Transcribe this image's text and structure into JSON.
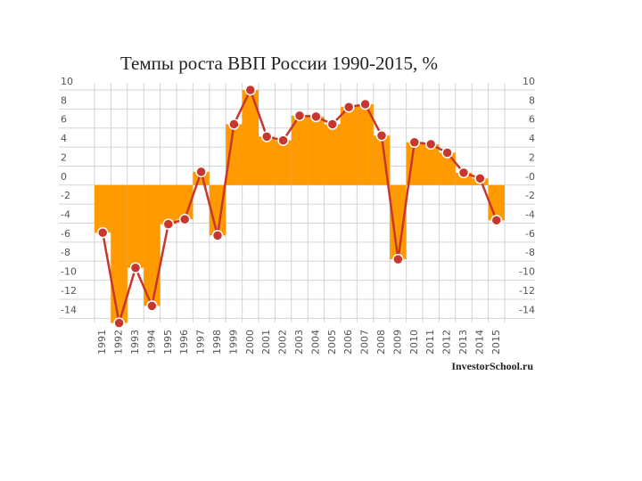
{
  "chart_data": {
    "type": "bar",
    "title": "Темпы роста ВВП России 1990-2015, %",
    "annotation": "InvestorSchool.ru",
    "categories": [
      "1991",
      "1992",
      "1993",
      "1994",
      "1995",
      "1996",
      "1997",
      "1998",
      "1999",
      "2000",
      "2001",
      "2002",
      "2003",
      "2004",
      "2005",
      "2006",
      "2007",
      "2008",
      "2009",
      "2010",
      "2011",
      "2012",
      "2013",
      "2014",
      "2015"
    ],
    "values": [
      -5.0,
      -14.5,
      -8.7,
      -12.7,
      -4.1,
      -3.6,
      1.4,
      -5.3,
      6.4,
      10.0,
      5.1,
      4.7,
      7.3,
      7.2,
      6.4,
      8.2,
      8.5,
      5.2,
      -7.8,
      4.5,
      4.3,
      3.4,
      1.3,
      0.7,
      -3.7
    ],
    "color": "#ff9a00",
    "line_color": "#c8372d",
    "ylim": [
      -15,
      10
    ],
    "yticks": [
      10,
      8,
      6,
      4,
      2,
      0,
      -2,
      -4,
      -6,
      -8,
      -10,
      -12,
      -14
    ],
    "y2lim": [
      -15,
      10
    ],
    "y2ticks": [
      10,
      8,
      6,
      4,
      2,
      {
        "value": 0,
        "label": "-0"
      },
      -2,
      -4,
      -6,
      -8,
      -10,
      -12,
      -14
    ],
    "grid": true
  }
}
